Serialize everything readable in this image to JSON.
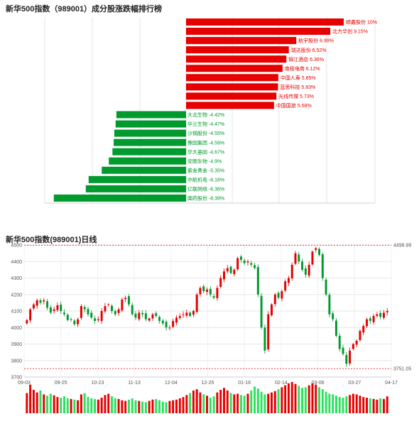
{
  "chart_data": [
    {
      "type": "bar",
      "title": "新华500指数（989001）成分股涨跌幅排行榜",
      "orientation": "horizontal",
      "colors": {
        "up": "#e60000",
        "down": "#009a2e"
      },
      "categories": [
        "顺鑫股份",
        "北方华创",
        "航宇股份",
        "瑞达股份",
        "锦江酒店",
        "南极电商",
        "中国人寿",
        "蓝思科技",
        "光线传媒",
        "中国国旅",
        "大北生物",
        "华兰生物",
        "沙钢股份",
        "豫园集团",
        "华大基因",
        "安图生物",
        "紫金黄金",
        "中航机电",
        "亿联网络",
        "国药股份"
      ],
      "values": [
        10,
        9.15,
        6.99,
        6.52,
        6.36,
        6.12,
        5.85,
        5.83,
        5.73,
        5.58,
        -4.42,
        -4.47,
        -4.55,
        -4.59,
        -4.67,
        -4.9,
        -5.35,
        -6.18,
        -6.36,
        -8.39
      ],
      "labels": [
        "顺鑫股份 10%",
        "北方华创 9.15%",
        "航宇股份 6.99%",
        "瑞达股份 6.52%",
        "锦江酒店 6.36%",
        "南极电商 6.12%",
        "中国人寿 5.85%",
        "蓝思科技 5.83%",
        "光线传媒 5.73%",
        "中国国旅 5.58%",
        "大北生物 -4.42%",
        "华兰生物 -4.47%",
        "沙钢股份 -4.55%",
        "豫园集团 -4.59%",
        "华大基因 -4.67%",
        "安图生物 -4.9%",
        "紫金黄金 -5.35%",
        "中航机电 -6.18%",
        "亿联网络 -6.36%",
        "国药股份 -8.39%"
      ],
      "xlim": [
        -9,
        10
      ]
    },
    {
      "type": "candlestick",
      "title": "新华500指数(989001)日线",
      "colors": {
        "up": "#e60000",
        "down": "#009a2e",
        "guide": "#e60000"
      },
      "ylim": [
        3700,
        4500
      ],
      "yticks": [
        "3700",
        "3800",
        "3900",
        "4000",
        "4100",
        "4200",
        "4300",
        "4400",
        "4500"
      ],
      "xtick_labels": [
        "09-03",
        "09-25",
        "10-23",
        "11-13",
        "12-04",
        "12-25",
        "01-16",
        "02-14",
        "03-06",
        "03-27",
        "04-17"
      ],
      "xtick_index": [
        0,
        15,
        30,
        45,
        60,
        75,
        90,
        105,
        120,
        135,
        150
      ],
      "max_label": "4498.99",
      "min_label": "3751.05",
      "max_value": 4498.99,
      "min_value": 3751.05,
      "closes": [
        4045,
        4110,
        4140,
        4165,
        4150,
        4165,
        4120,
        4090,
        4110,
        4135,
        4100,
        4080,
        4045,
        4050,
        4020,
        4050,
        4130,
        4110,
        4080,
        4060,
        4040,
        4050,
        4100,
        4130,
        4140,
        4100,
        4080,
        4110,
        4170,
        4180,
        4140,
        4080,
        4060,
        4090,
        4080,
        4050,
        4055,
        4080,
        4070,
        4040,
        4025,
        4000,
        4000,
        4040,
        4060,
        4070,
        4080,
        4090,
        4070,
        4100,
        4200,
        4240,
        4220,
        4230,
        4200,
        4180,
        4240,
        4300,
        4340,
        4360,
        4330,
        4350,
        4420,
        4410,
        4390,
        4400,
        4380,
        4360,
        4200,
        4000,
        3860,
        4080,
        4140,
        4200,
        4180,
        4220,
        4280,
        4300,
        4380,
        4450,
        4400,
        4350,
        4320,
        4380,
        4460,
        4480,
        4440,
        4300,
        4200,
        4080,
        4050,
        3950,
        3870,
        3840,
        3780,
        3860,
        3900,
        3920,
        3980,
        4010,
        4050,
        4040,
        4070,
        4080,
        4065,
        4090,
        4100
      ],
      "volumes": [
        62,
        88,
        72,
        64,
        70,
        58,
        54,
        60,
        55,
        50,
        48,
        52,
        46,
        44,
        42,
        40,
        58,
        62,
        50,
        46,
        44,
        42,
        48,
        56,
        60,
        52,
        46,
        44,
        40,
        38,
        42,
        46,
        40,
        38,
        36,
        34,
        38,
        42,
        44,
        40,
        36,
        34,
        38,
        40,
        42,
        46,
        50,
        56,
        62,
        70,
        74,
        64,
        58,
        54,
        48,
        52,
        64,
        72,
        78,
        70,
        62,
        58,
        60,
        56,
        54,
        60,
        70,
        82,
        76,
        66,
        58,
        60,
        64,
        68,
        74,
        80,
        86,
        92,
        96,
        90,
        84,
        78,
        80,
        86,
        92,
        88,
        80,
        74,
        66,
        60,
        58,
        54,
        50,
        48,
        52,
        56,
        60,
        58,
        54,
        50,
        48,
        46,
        44,
        42,
        46,
        44,
        52
      ]
    }
  ]
}
